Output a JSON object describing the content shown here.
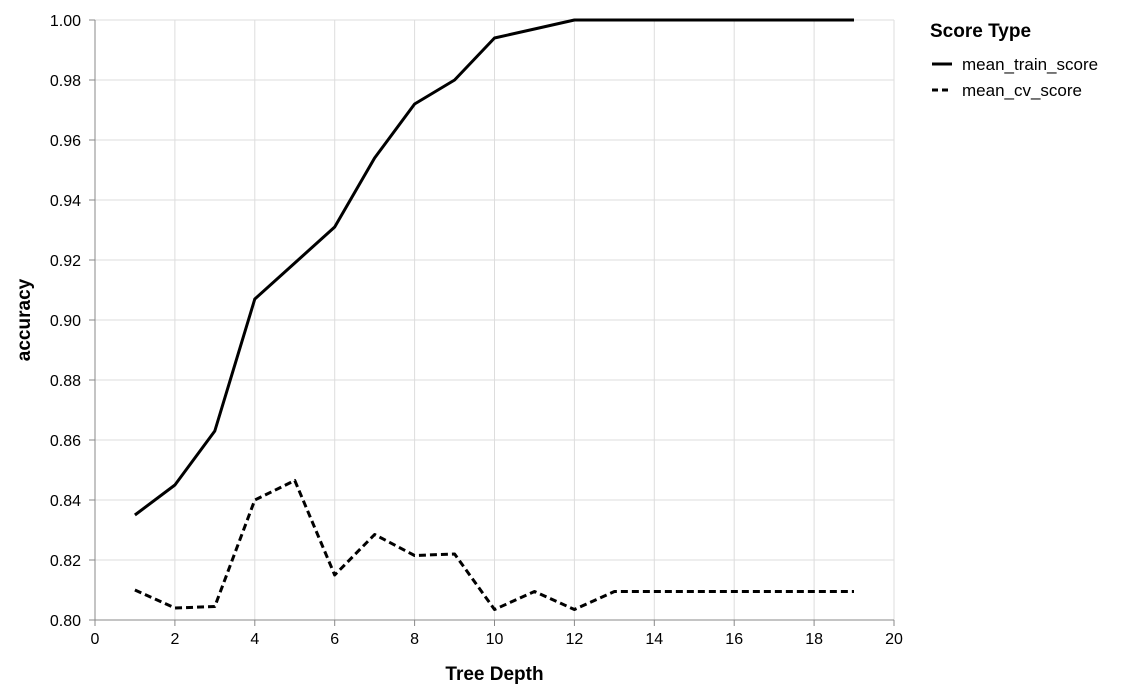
{
  "chart_data": {
    "type": "line",
    "xlabel": "Tree Depth",
    "ylabel": "accuracy",
    "xlim": [
      0,
      20
    ],
    "ylim": [
      0.8,
      1.0
    ],
    "x_ticks": [
      "0",
      "2",
      "4",
      "6",
      "8",
      "10",
      "12",
      "14",
      "16",
      "18",
      "20"
    ],
    "y_ticks": [
      "0.80",
      "0.82",
      "0.84",
      "0.86",
      "0.88",
      "0.90",
      "0.92",
      "0.94",
      "0.96",
      "0.98",
      "1.00"
    ],
    "grid": true,
    "legend": {
      "title": "Score Type",
      "position": "right"
    },
    "x": [
      1,
      2,
      3,
      4,
      5,
      6,
      7,
      8,
      9,
      10,
      11,
      12,
      13,
      14,
      15,
      16,
      17,
      18,
      19
    ],
    "series": [
      {
        "name": "mean_train_score",
        "dash": "solid",
        "values": [
          0.835,
          0.845,
          0.863,
          0.907,
          0.919,
          0.931,
          0.954,
          0.972,
          0.98,
          0.994,
          0.997,
          1.0,
          1.0,
          1.0,
          1.0,
          1.0,
          1.0,
          1.0,
          1.0
        ]
      },
      {
        "name": "mean_cv_score",
        "dash": "dashed",
        "values": [
          0.81,
          0.804,
          0.8045,
          0.84,
          0.8465,
          0.815,
          0.8285,
          0.8215,
          0.822,
          0.8035,
          0.8095,
          0.8035,
          0.8095,
          0.8095,
          0.8095,
          0.8095,
          0.8095,
          0.8095,
          0.8095
        ]
      }
    ]
  }
}
